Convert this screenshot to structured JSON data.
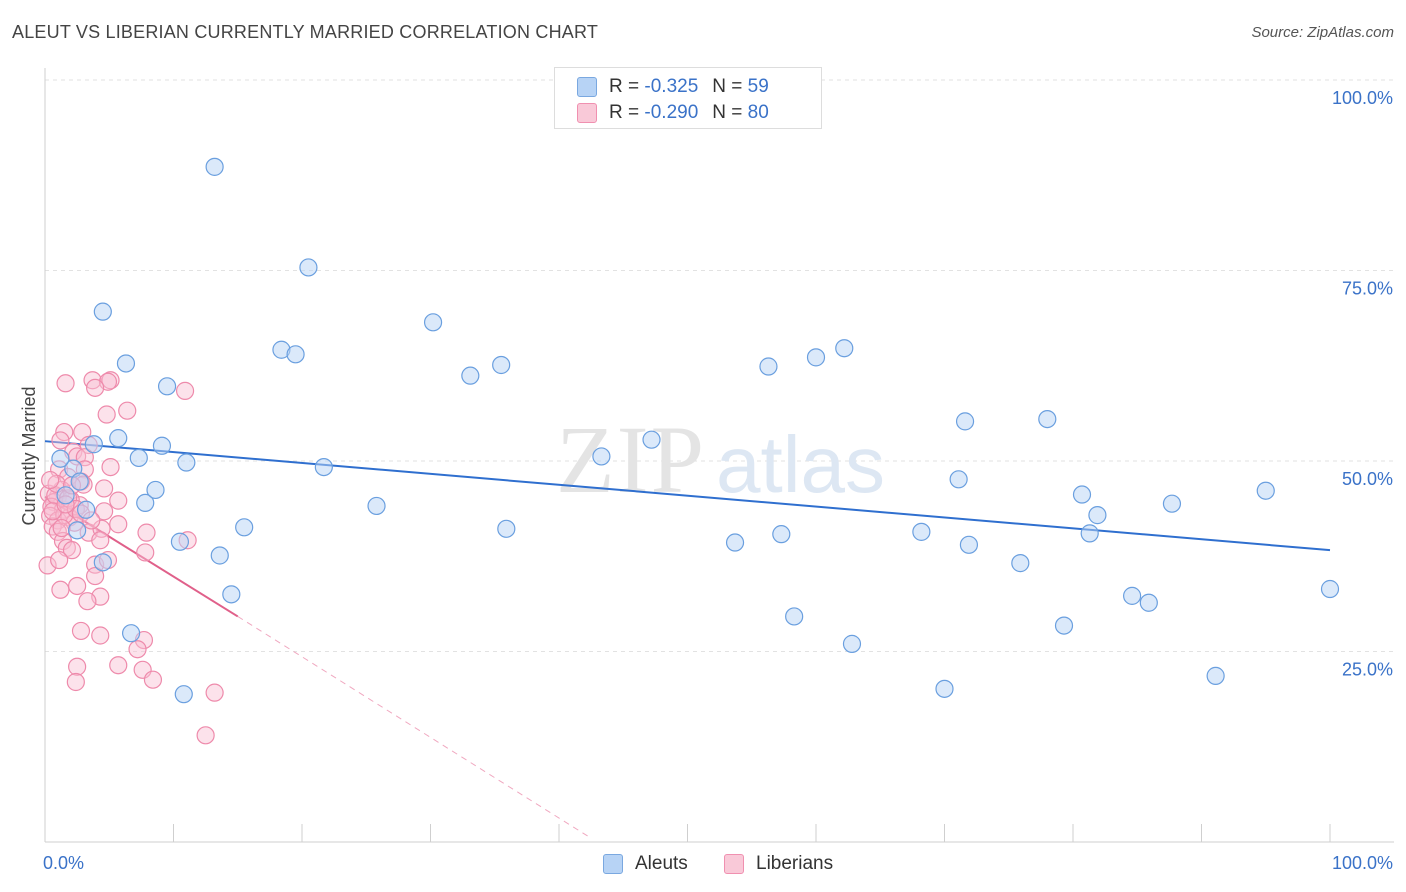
{
  "title": "ALEUT VS LIBERIAN CURRENTLY MARRIED CORRELATION CHART",
  "source": "Source: ZipAtlas.com",
  "watermark": {
    "zip": "ZIP",
    "atlas": "atlas"
  },
  "legend": {
    "r_label": "R =",
    "n_label": "N =",
    "aleuts": {
      "r": "-0.325",
      "n": "59"
    },
    "liberians": {
      "r": "-0.290",
      "n": "80"
    }
  },
  "chart_data": {
    "type": "scatter",
    "title": "ALEUT VS LIBERIAN CURRENTLY MARRIED CORRELATION CHART",
    "xlabel": "",
    "ylabel": "Currently Married",
    "xlim": [
      0,
      100
    ],
    "ylim": [
      0,
      100
    ],
    "x_tick_labels": [
      "0.0%",
      "100.0%"
    ],
    "y_tick_labels": [
      "100.0%",
      "75.0%",
      "50.0%",
      "25.0%"
    ],
    "y_tick_values": [
      100,
      75,
      50,
      25
    ],
    "grid": true,
    "legend_position": "bottom",
    "colors": {
      "aleuts": "#6a9fdf",
      "liberians": "#ee8aab",
      "aleuts_line": "#2f6fcf",
      "liberians_line": "#e0608a"
    },
    "series": [
      {
        "name": "Aleuts",
        "trend": {
          "x0": 0,
          "y0": 52.6,
          "x1": 100,
          "y1": 38.3
        },
        "points": [
          [
            13.2,
            88.6
          ],
          [
            20.5,
            75.4
          ],
          [
            4.5,
            69.6
          ],
          [
            6.3,
            62.8
          ],
          [
            9.5,
            59.8
          ],
          [
            18.4,
            64.6
          ],
          [
            19.5,
            64.0
          ],
          [
            30.2,
            68.2
          ],
          [
            33.1,
            61.2
          ],
          [
            35.5,
            62.6
          ],
          [
            56.3,
            62.4
          ],
          [
            60.0,
            63.6
          ],
          [
            62.2,
            64.8
          ],
          [
            5.7,
            53.0
          ],
          [
            3.8,
            52.2
          ],
          [
            9.1,
            52.0
          ],
          [
            7.3,
            50.4
          ],
          [
            11.0,
            49.8
          ],
          [
            2.2,
            49.0
          ],
          [
            2.7,
            47.3
          ],
          [
            1.2,
            50.3
          ],
          [
            21.7,
            49.2
          ],
          [
            43.3,
            50.6
          ],
          [
            47.2,
            52.8
          ],
          [
            71.6,
            55.2
          ],
          [
            78.0,
            55.5
          ],
          [
            7.8,
            44.5
          ],
          [
            25.8,
            44.1
          ],
          [
            35.9,
            41.1
          ],
          [
            15.5,
            41.3
          ],
          [
            10.5,
            39.4
          ],
          [
            13.6,
            37.6
          ],
          [
            4.5,
            36.7
          ],
          [
            14.5,
            32.5
          ],
          [
            6.7,
            27.4
          ],
          [
            10.8,
            19.4
          ],
          [
            53.7,
            39.3
          ],
          [
            57.3,
            40.4
          ],
          [
            68.2,
            40.7
          ],
          [
            71.1,
            47.6
          ],
          [
            71.9,
            39.0
          ],
          [
            75.9,
            36.6
          ],
          [
            80.7,
            45.6
          ],
          [
            81.3,
            40.5
          ],
          [
            81.9,
            42.9
          ],
          [
            84.6,
            32.3
          ],
          [
            85.9,
            31.4
          ],
          [
            87.7,
            44.4
          ],
          [
            95.0,
            46.1
          ],
          [
            100.0,
            33.2
          ],
          [
            58.3,
            29.6
          ],
          [
            62.8,
            26.0
          ],
          [
            70.0,
            20.1
          ],
          [
            79.3,
            28.4
          ],
          [
            91.1,
            21.8
          ],
          [
            2.5,
            40.9
          ],
          [
            3.2,
            43.6
          ],
          [
            1.6,
            45.5
          ],
          [
            8.6,
            46.2
          ]
        ]
      },
      {
        "name": "Liberians",
        "trend": {
          "x0": 0,
          "y0": 45.3,
          "x1": 15,
          "y1": 29.6
        },
        "trend_extended": {
          "x0": 15,
          "y0": 29.6,
          "x1": 42.5,
          "y1": 0.5
        },
        "points": [
          [
            1.6,
            60.2
          ],
          [
            3.7,
            60.6
          ],
          [
            5.1,
            60.6
          ],
          [
            4.9,
            60.4
          ],
          [
            3.9,
            59.6
          ],
          [
            10.9,
            59.2
          ],
          [
            4.8,
            56.1
          ],
          [
            6.4,
            56.6
          ],
          [
            1.5,
            53.8
          ],
          [
            2.9,
            53.8
          ],
          [
            1.2,
            52.7
          ],
          [
            3.4,
            52.1
          ],
          [
            2.2,
            51.2
          ],
          [
            2.5,
            50.6
          ],
          [
            3.1,
            50.5
          ],
          [
            1.1,
            48.9
          ],
          [
            3.1,
            48.9
          ],
          [
            5.1,
            49.2
          ],
          [
            1.8,
            47.9
          ],
          [
            2.8,
            47.3
          ],
          [
            4.6,
            46.4
          ],
          [
            1.3,
            46.2
          ],
          [
            1.0,
            45.3
          ],
          [
            0.3,
            45.7
          ],
          [
            0.7,
            44.6
          ],
          [
            0.5,
            44.0
          ],
          [
            1.4,
            43.6
          ],
          [
            2.7,
            44.2
          ],
          [
            5.7,
            44.8
          ],
          [
            4.6,
            43.4
          ],
          [
            0.4,
            42.8
          ],
          [
            1.0,
            42.2
          ],
          [
            1.9,
            42.6
          ],
          [
            2.3,
            41.9
          ],
          [
            0.6,
            41.4
          ],
          [
            1.0,
            40.7
          ],
          [
            3.4,
            40.6
          ],
          [
            4.4,
            41.1
          ],
          [
            5.7,
            41.7
          ],
          [
            7.9,
            40.6
          ],
          [
            1.4,
            39.5
          ],
          [
            4.3,
            39.6
          ],
          [
            1.7,
            38.6
          ],
          [
            2.1,
            38.3
          ],
          [
            7.8,
            38.0
          ],
          [
            0.2,
            36.3
          ],
          [
            1.1,
            37.0
          ],
          [
            3.9,
            36.4
          ],
          [
            4.9,
            37.0
          ],
          [
            3.9,
            34.9
          ],
          [
            1.2,
            33.1
          ],
          [
            2.5,
            33.6
          ],
          [
            4.3,
            32.2
          ],
          [
            3.3,
            31.6
          ],
          [
            2.8,
            27.7
          ],
          [
            4.3,
            27.1
          ],
          [
            7.7,
            26.5
          ],
          [
            7.2,
            25.3
          ],
          [
            2.5,
            23.0
          ],
          [
            5.7,
            23.2
          ],
          [
            7.6,
            22.6
          ],
          [
            2.4,
            21.0
          ],
          [
            8.4,
            21.3
          ],
          [
            13.2,
            19.6
          ],
          [
            11.1,
            39.6
          ],
          [
            12.5,
            14.0
          ],
          [
            0.8,
            45.5
          ],
          [
            1.5,
            42.9
          ],
          [
            2.0,
            44.9
          ],
          [
            0.9,
            47.0
          ],
          [
            1.8,
            45.1
          ],
          [
            2.4,
            43.7
          ],
          [
            1.3,
            41.2
          ],
          [
            3.0,
            46.9
          ],
          [
            0.6,
            43.4
          ],
          [
            1.6,
            44.3
          ],
          [
            2.8,
            43.1
          ],
          [
            3.6,
            42.2
          ],
          [
            2.1,
            46.8
          ],
          [
            0.4,
            47.5
          ]
        ]
      }
    ]
  }
}
